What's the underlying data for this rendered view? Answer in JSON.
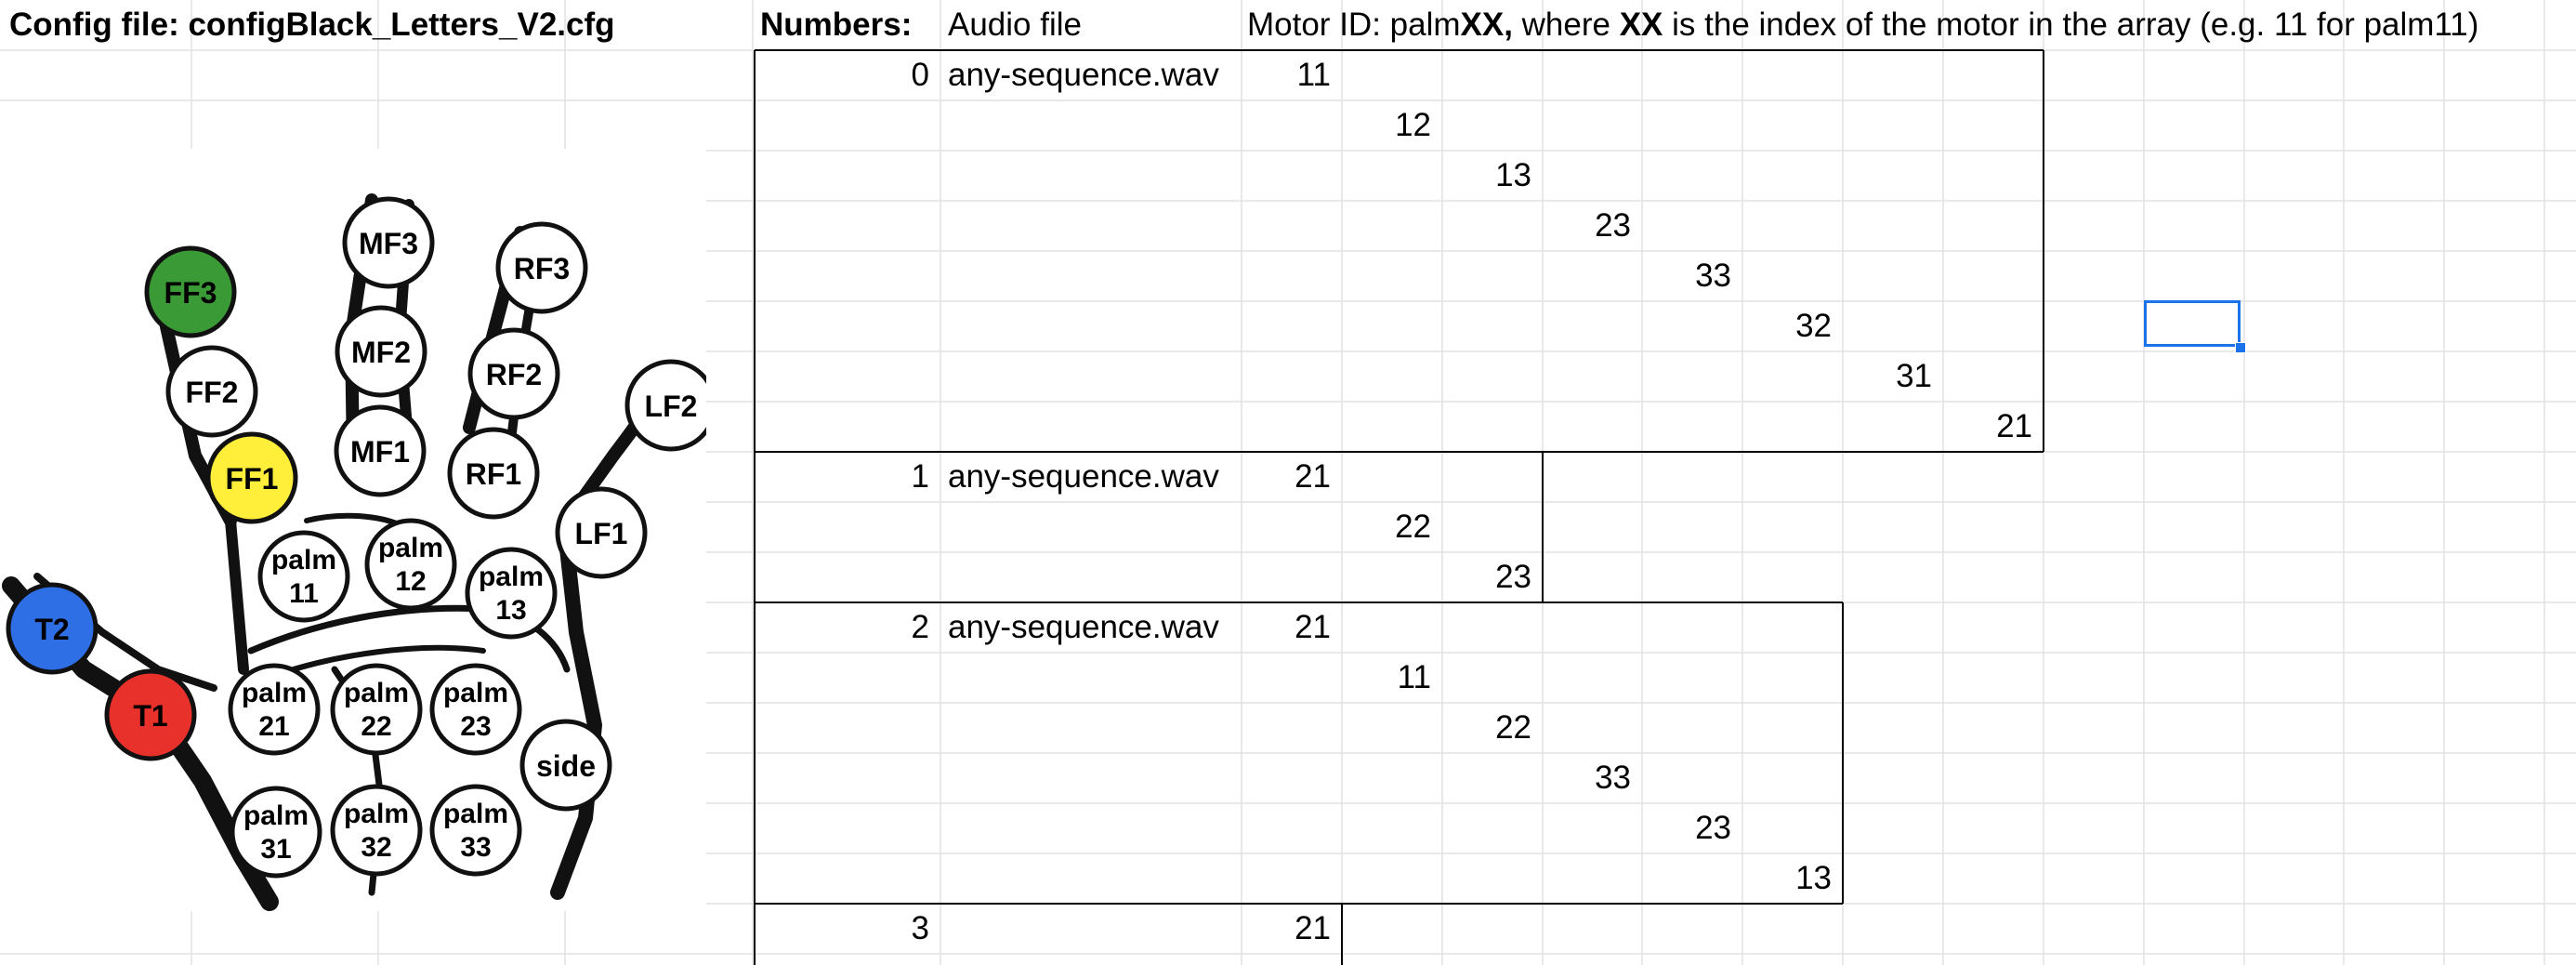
{
  "sheet": {
    "config_label": "Config file: configBlack_Letters_V2.cfg",
    "numbers_header": "Numbers:",
    "audio_header": "Audio file",
    "motor_header": {
      "prefix": "Motor ID: palm",
      "xx1": "XX,",
      "mid": " where ",
      "xx2": "XX",
      "suffix": " is the index of the motor in the array (e.g. 11 for palm11)"
    },
    "groups": [
      {
        "number": "0",
        "audio": "any-sequence.wav",
        "motors": [
          "11",
          "12",
          "13",
          "23",
          "33",
          "32",
          "31",
          "21"
        ]
      },
      {
        "number": "1",
        "audio": "any-sequence.wav",
        "motors": [
          "21",
          "22",
          "23"
        ]
      },
      {
        "number": "2",
        "audio": "any-sequence.wav",
        "motors": [
          "21",
          "11",
          "22",
          "33",
          "23",
          "13"
        ]
      },
      {
        "number": "3",
        "audio": "",
        "motors": [
          "21"
        ]
      }
    ]
  },
  "hand_motors": {
    "FF3": "FF3",
    "FF2": "FF2",
    "FF1": "FF1",
    "MF3": "MF3",
    "MF2": "MF2",
    "MF1": "MF1",
    "RF3": "RF3",
    "RF2": "RF2",
    "RF1": "RF1",
    "LF2": "LF2",
    "LF1": "LF1",
    "T2": "T2",
    "T1": "T1",
    "side": "side",
    "palm_word": "palm",
    "p11": "11",
    "p12": "12",
    "p13": "13",
    "p21": "21",
    "p22": "22",
    "p23": "23",
    "p31": "31",
    "p32": "32",
    "p33": "33"
  },
  "colors": {
    "FF3": "#3a9a35",
    "FF1": "#ffef3a",
    "T2": "#2f6fe6",
    "T1": "#e8312b",
    "selection": "#1a73e8",
    "gridline": "#e2e2e2"
  }
}
